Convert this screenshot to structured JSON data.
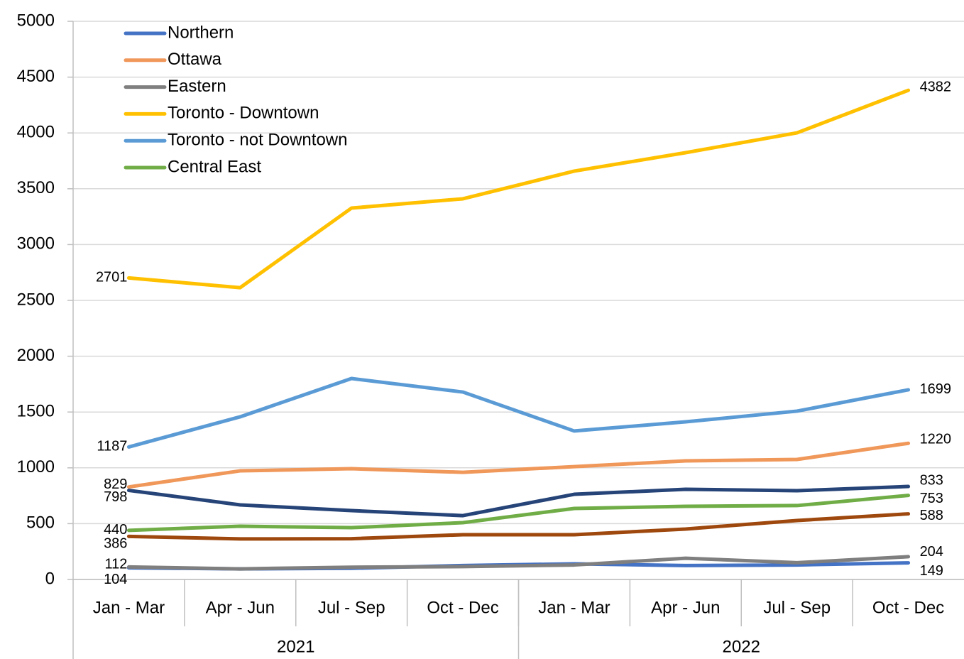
{
  "chart_data": {
    "type": "line",
    "categories": [
      "Jan - Mar",
      "Apr - Jun",
      "Jul - Sep",
      "Oct - Dec",
      "Jan - Mar",
      "Apr - Jun",
      "Jul - Sep",
      "Oct - Dec"
    ],
    "category_groups": [
      "2021",
      "2022"
    ],
    "series": [
      {
        "name": "Northern",
        "color": "#4472c4",
        "values": [
          104,
          95,
          100,
          125,
          140,
          125,
          130,
          149
        ]
      },
      {
        "name": "Ottawa",
        "color": "#f0975a",
        "values": [
          829,
          973,
          992,
          960,
          1011,
          1062,
          1075,
          1220
        ]
      },
      {
        "name": "Eastern",
        "color": "#7f7f7f",
        "values": [
          112,
          95,
          110,
          115,
          130,
          190,
          150,
          204
        ]
      },
      {
        "name": "Toronto - Downtown",
        "color": "#ffc000",
        "values": [
          2701,
          2614,
          3327,
          3410,
          3658,
          3823,
          4001,
          4382
        ]
      },
      {
        "name": "Toronto - not Downtown",
        "color": "#5b9bd5",
        "values": [
          1187,
          1457,
          1800,
          1679,
          1330,
          1412,
          1508,
          1699
        ]
      },
      {
        "name": "Central East",
        "color": "#70ad47",
        "values": [
          440,
          477,
          464,
          509,
          636,
          655,
          662,
          753
        ]
      },
      {
        "color": "#264478",
        "values": [
          798,
          668,
          617,
          572,
          763,
          808,
          795,
          833
        ]
      },
      {
        "color": "#9e480e",
        "values": [
          386,
          363,
          365,
          401,
          401,
          452,
          528,
          588
        ]
      }
    ],
    "ylim": [
      0,
      5000
    ],
    "yticks": [
      0,
      500,
      1000,
      1500,
      2000,
      2500,
      3000,
      3500,
      4000,
      4500,
      5000
    ],
    "grid": true,
    "legend": "upper-left"
  }
}
